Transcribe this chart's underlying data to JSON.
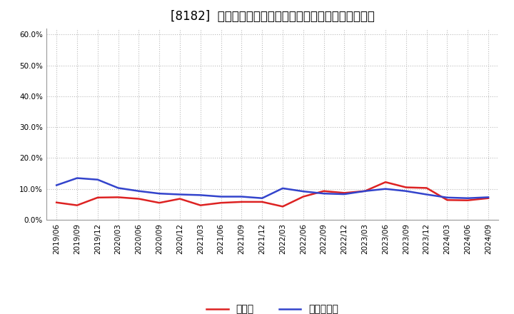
{
  "title": "[8182]  現預金、有利子負債の総資産に対する比率の推移",
  "x_labels": [
    "2019/06",
    "2019/09",
    "2019/12",
    "2020/03",
    "2020/06",
    "2020/09",
    "2020/12",
    "2021/03",
    "2021/06",
    "2021/09",
    "2021/12",
    "2022/03",
    "2022/06",
    "2022/09",
    "2022/12",
    "2023/03",
    "2023/06",
    "2023/09",
    "2023/12",
    "2024/03",
    "2024/06",
    "2024/09"
  ],
  "cash_values": [
    0.056,
    0.047,
    0.072,
    0.073,
    0.068,
    0.055,
    0.068,
    0.047,
    0.055,
    0.058,
    0.058,
    0.043,
    0.075,
    0.093,
    0.087,
    0.093,
    0.122,
    0.105,
    0.103,
    0.064,
    0.063,
    0.07
  ],
  "debt_values": [
    0.112,
    0.135,
    0.13,
    0.103,
    0.093,
    0.085,
    0.082,
    0.08,
    0.075,
    0.075,
    0.07,
    0.102,
    0.092,
    0.085,
    0.083,
    0.093,
    0.1,
    0.093,
    0.082,
    0.072,
    0.07,
    0.073
  ],
  "cash_color": "#dd2222",
  "debt_color": "#3344cc",
  "ylim": [
    0.0,
    0.62
  ],
  "yticks": [
    0.0,
    0.1,
    0.2,
    0.3,
    0.4,
    0.5,
    0.6
  ],
  "legend_cash": "現預金",
  "legend_debt": "有利子負債",
  "bg_color": "#ffffff",
  "plot_bg_color": "#ffffff",
  "grid_color": "#bbbbbb",
  "title_fontsize": 12,
  "label_fontsize": 7.5,
  "legend_fontsize": 10
}
